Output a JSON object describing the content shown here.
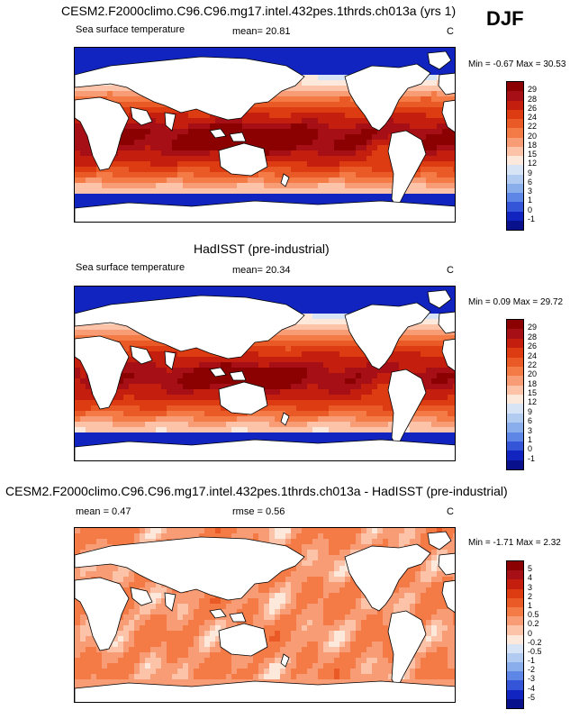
{
  "season": "DJF",
  "panels": [
    {
      "title": "CESM2.F2000climo.C96.C96.mg17.intel.432pes.1thrds.ch013a (yrs 1)",
      "variable": "Sea surface temperature",
      "stat1": "mean=  20.81",
      "stat2": "",
      "units": "C",
      "minmax": "Min =  -0.67 Max =  30.53",
      "levels": [
        "29",
        "28",
        "26",
        "24",
        "22",
        "20",
        "18",
        "15",
        "12",
        "9",
        "6",
        "3",
        "1",
        "0",
        "-1"
      ],
      "colors": [
        "#8b0000",
        "#a50f15",
        "#c41e0e",
        "#dd3b12",
        "#ea5a26",
        "#f47a46",
        "#f89c76",
        "#fcc3a8",
        "#fde9dc",
        "#d6e4f6",
        "#b2cbf0",
        "#8aaeeb",
        "#5e86e6",
        "#3455d8",
        "#1224c0",
        "#08108c"
      ]
    },
    {
      "title": "HadISST (pre-industrial)",
      "variable": "Sea surface temperature",
      "stat1": "mean=  20.34",
      "stat2": "",
      "units": "C",
      "minmax": "Min =  0.09 Max =  29.72",
      "levels": [
        "29",
        "28",
        "26",
        "24",
        "22",
        "20",
        "18",
        "15",
        "12",
        "9",
        "6",
        "3",
        "1",
        "0",
        "-1"
      ],
      "colors": [
        "#8b0000",
        "#a50f15",
        "#c41e0e",
        "#dd3b12",
        "#ea5a26",
        "#f47a46",
        "#f89c76",
        "#fcc3a8",
        "#fde9dc",
        "#d6e4f6",
        "#b2cbf0",
        "#8aaeeb",
        "#5e86e6",
        "#3455d8",
        "#1224c0",
        "#08108c"
      ]
    },
    {
      "title": "CESM2.F2000climo.C96.C96.mg17.intel.432pes.1thrds.ch013a - HadISST (pre-industrial)",
      "variable": "",
      "stat1": "mean =  0.47",
      "stat2": "rmse =  0.56",
      "units": "C",
      "minmax": "Min =  -1.71 Max =  2.32",
      "levels": [
        "5",
        "4",
        "3",
        "2",
        "1",
        "0.5",
        "0.2",
        "0",
        "-0.2",
        "-0.5",
        "-1",
        "-2",
        "-3",
        "-4",
        "-5"
      ],
      "colors": [
        "#8b0000",
        "#a50f15",
        "#c41e0e",
        "#dd3b12",
        "#ea5a26",
        "#f47a46",
        "#f89c76",
        "#fcc3a8",
        "#fde9dc",
        "#d6e4f6",
        "#b2cbf0",
        "#8aaeeb",
        "#5e86e6",
        "#3455d8",
        "#1224c0",
        "#08108c"
      ]
    }
  ]
}
